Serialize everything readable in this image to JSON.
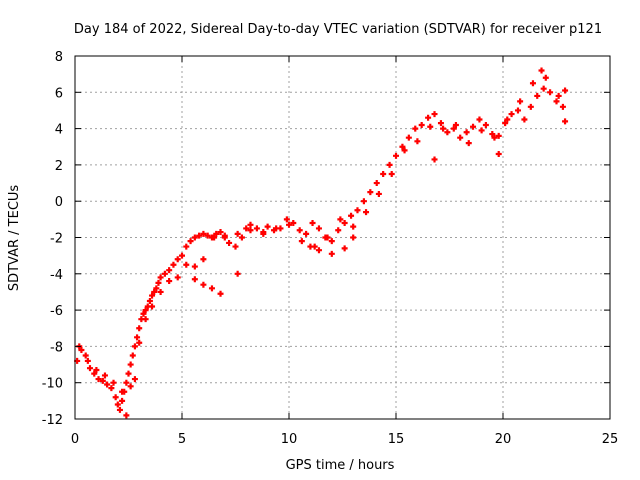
{
  "chart_data": {
    "type": "scatter",
    "title": "Day 184 of 2022, Sidereal Day-to-day VTEC variation (SDTVAR) for receiver p121",
    "xlabel": "GPS time / hours",
    "ylabel": "SDTVAR / TECUs",
    "xlim": [
      0,
      25
    ],
    "ylim": [
      -12,
      8
    ],
    "x_ticks": [
      0,
      5,
      10,
      15,
      20,
      25
    ],
    "y_ticks": [
      -12,
      -10,
      -8,
      -6,
      -4,
      -2,
      0,
      2,
      4,
      6,
      8
    ],
    "grid": true,
    "marker": "+",
    "series": [
      {
        "name": "SDTVAR",
        "color": "#ff0000",
        "x": [
          0.1,
          0.3,
          0.5,
          0.7,
          0.9,
          1.1,
          1.3,
          1.5,
          1.7,
          1.9,
          2.0,
          2.1,
          2.2,
          2.3,
          2.4,
          2.5,
          2.6,
          2.7,
          2.8,
          2.9,
          3.0,
          3.1,
          3.2,
          3.3,
          3.4,
          3.5,
          3.6,
          3.7,
          3.8,
          3.9,
          4.0,
          4.2,
          4.4,
          4.6,
          4.8,
          5.0,
          5.2,
          5.4,
          5.6,
          5.8,
          6.0,
          6.2,
          6.4,
          6.6,
          6.8,
          7.0,
          7.2,
          7.5,
          7.8,
          8.0,
          8.2,
          8.5,
          8.8,
          9.0,
          9.3,
          9.6,
          9.9,
          10.2,
          10.5,
          10.8,
          11.1,
          11.4,
          11.7,
          12.0,
          12.3,
          12.6,
          12.9,
          13.2,
          13.5,
          13.8,
          14.1,
          14.4,
          14.7,
          15.0,
          15.3,
          15.6,
          15.9,
          16.2,
          16.5,
          16.8,
          17.1,
          17.4,
          17.7,
          18.0,
          18.3,
          18.6,
          18.9,
          19.2,
          19.5,
          19.8,
          20.1,
          20.4,
          20.7,
          21.0,
          21.3,
          21.6,
          21.9,
          22.2,
          22.5,
          22.8,
          0.2,
          0.6,
          1.0,
          1.4,
          1.8,
          2.2,
          2.6,
          3.0,
          3.3,
          3.6,
          4.0,
          4.4,
          4.8,
          5.2,
          5.6,
          6.0,
          6.5,
          7.0,
          7.6,
          8.2,
          8.8,
          9.4,
          10.0,
          10.6,
          11.2,
          11.8,
          12.4,
          13.0,
          13.6,
          14.2,
          14.8,
          15.4,
          16.0,
          16.6,
          17.2,
          17.8,
          18.4,
          19.0,
          19.6,
          20.2,
          20.8,
          21.4,
          22.0,
          22.6,
          2.4,
          2.8,
          5.6,
          6.0,
          6.4,
          6.8,
          11.0,
          11.4,
          12.0,
          12.6,
          13.0,
          16.8,
          19.8,
          21.8,
          22.9,
          22.9,
          7.6
        ],
        "y": [
          -8.8,
          -8.2,
          -8.5,
          -9.2,
          -9.5,
          -9.8,
          -9.9,
          -10.1,
          -10.3,
          -10.8,
          -11.2,
          -11.5,
          -11.0,
          -10.5,
          -10.0,
          -9.5,
          -9.0,
          -8.5,
          -8.0,
          -7.5,
          -7.0,
          -6.5,
          -6.2,
          -6.0,
          -5.8,
          -5.5,
          -5.2,
          -5.0,
          -4.8,
          -4.5,
          -4.2,
          -4.0,
          -3.8,
          -3.5,
          -3.2,
          -3.0,
          -2.5,
          -2.2,
          -2.0,
          -1.9,
          -1.8,
          -1.9,
          -2.0,
          -1.8,
          -1.7,
          -2.0,
          -2.3,
          -2.5,
          -2.0,
          -1.5,
          -1.3,
          -1.5,
          -1.7,
          -1.4,
          -1.6,
          -1.5,
          -1.0,
          -1.2,
          -1.6,
          -1.8,
          -1.2,
          -1.5,
          -2.0,
          -2.2,
          -1.6,
          -1.2,
          -0.8,
          -0.5,
          0.0,
          0.5,
          1.0,
          1.5,
          2.0,
          2.5,
          3.0,
          3.5,
          4.0,
          4.2,
          4.6,
          4.8,
          4.3,
          3.8,
          4.0,
          3.5,
          3.8,
          4.1,
          4.5,
          4.2,
          3.7,
          3.6,
          4.3,
          4.8,
          5.0,
          4.5,
          5.2,
          5.8,
          6.2,
          6.0,
          5.5,
          5.2,
          -8.0,
          -8.8,
          -9.3,
          -9.6,
          -10.0,
          -10.5,
          -10.2,
          -7.8,
          -6.5,
          -5.8,
          -5.0,
          -4.4,
          -4.2,
          -3.5,
          -3.6,
          -3.2,
          -2.0,
          -1.9,
          -1.8,
          -1.6,
          -1.8,
          -1.5,
          -1.3,
          -2.2,
          -2.5,
          -2.0,
          -1.0,
          -1.4,
          -0.6,
          0.4,
          1.5,
          2.8,
          3.3,
          4.1,
          4.0,
          4.2,
          3.2,
          3.9,
          3.5,
          4.5,
          5.5,
          6.5,
          6.8,
          5.8,
          -11.8,
          -9.8,
          -4.3,
          -4.6,
          -4.8,
          -5.1,
          -2.5,
          -2.7,
          -2.9,
          -2.6,
          -2.0,
          2.3,
          2.6,
          7.2,
          4.4,
          6.1,
          -4.0
        ]
      }
    ]
  }
}
